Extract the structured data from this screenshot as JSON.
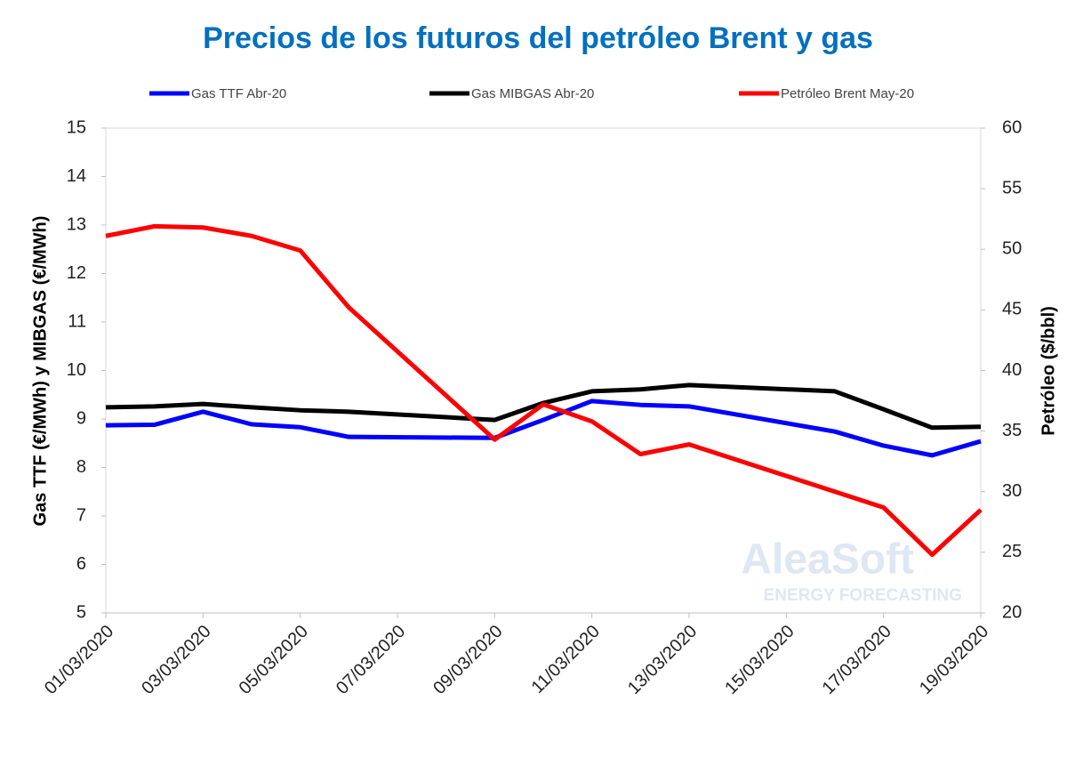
{
  "chart_data": {
    "type": "line",
    "title": "Precios de los futuros del petróleo Brent y gas",
    "y_label": "Gas  TTF  (€/MWh) y MIBGAS (€/MWh)",
    "y2_label": "Petróleo ($/bbl)",
    "watermark": {
      "brand": "AleaSoft",
      "tagline": "ENERGY FORECASTING"
    },
    "x": [
      "01/03/2020",
      "02/03/2020",
      "03/03/2020",
      "04/03/2020",
      "05/03/2020",
      "06/03/2020",
      "09/03/2020",
      "10/03/2020",
      "11/03/2020",
      "12/03/2020",
      "13/03/2020",
      "16/03/2020",
      "17/03/2020",
      "18/03/2020",
      "19/03/2020"
    ],
    "xlim": [
      "01/03/2020",
      "19/03/2020"
    ],
    "xticks": [
      "01/03/2020",
      "03/03/2020",
      "05/03/2020",
      "07/03/2020",
      "09/03/2020",
      "11/03/2020",
      "13/03/2020",
      "15/03/2020",
      "17/03/2020",
      "19/03/2020"
    ],
    "ylim": [
      5,
      15
    ],
    "yticks": [
      5,
      6,
      7,
      8,
      9,
      10,
      11,
      12,
      13,
      14,
      15
    ],
    "y2lim": [
      20,
      60
    ],
    "y2ticks": [
      20,
      25,
      30,
      35,
      40,
      45,
      50,
      55,
      60
    ],
    "legend": "top",
    "series": [
      {
        "name": "Gas TTF Abr-20",
        "color": "#0000ff",
        "values": [
          8.87,
          8.88,
          9.15,
          8.89,
          8.83,
          8.63,
          8.61,
          8.98,
          9.37,
          9.29,
          9.26,
          8.74,
          8.45,
          8.25,
          8.54
        ]
      },
      {
        "name": "Gas MIBGAS Abr-20",
        "color": "#000000",
        "values": [
          9.24,
          9.26,
          9.31,
          9.24,
          9.18,
          9.15,
          8.98,
          9.33,
          9.57,
          9.61,
          9.7,
          9.57,
          9.2,
          8.82,
          8.84
        ]
      },
      {
        "name": "Petróleo Brent May-20",
        "color": "#ff0000",
        "axis": "y2",
        "values": [
          51.1,
          51.9,
          51.8,
          51.1,
          49.9,
          45.2,
          34.3,
          37.2,
          35.8,
          33.1,
          33.9,
          30.0,
          28.7,
          24.8,
          28.5
        ]
      }
    ]
  }
}
